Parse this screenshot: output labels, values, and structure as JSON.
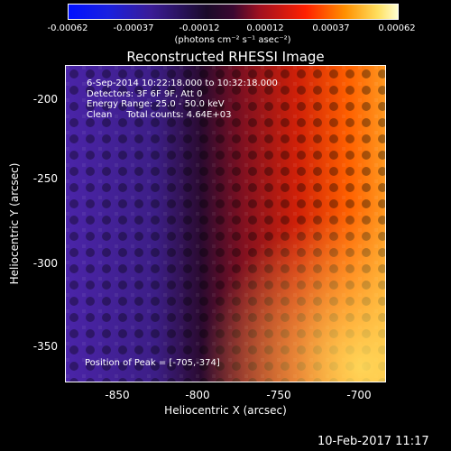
{
  "colorbar": {
    "ticks": [
      "-0.00062",
      "-0.00037",
      "-0.00012",
      "0.00012",
      "0.00037",
      "0.00062"
    ],
    "unit": "(photons cm⁻² s⁻¹ asec⁻²)"
  },
  "title": "Reconstructed RHESSI Image",
  "info": {
    "time": "6-Sep-2014 10:22:18.000 to 10:32:18.000",
    "detectors": "Detectors: 3F 6F 9F, Att 0",
    "energy": "Energy Range: 25.0 - 50.0 keV",
    "clean": "Clean     Total counts: 4.64E+03",
    "peak": "Position of Peak = [-705,-374]"
  },
  "axes": {
    "x_label": "Heliocentric X (arcsec)",
    "y_label": "Heliocentric Y (arcsec)",
    "x_ticks": [
      "-850",
      "-800",
      "-750",
      "-700"
    ],
    "y_ticks": [
      "-200",
      "-250",
      "-300",
      "-350"
    ]
  },
  "footer": {
    "date": "10-Feb-2017 11:17"
  }
}
